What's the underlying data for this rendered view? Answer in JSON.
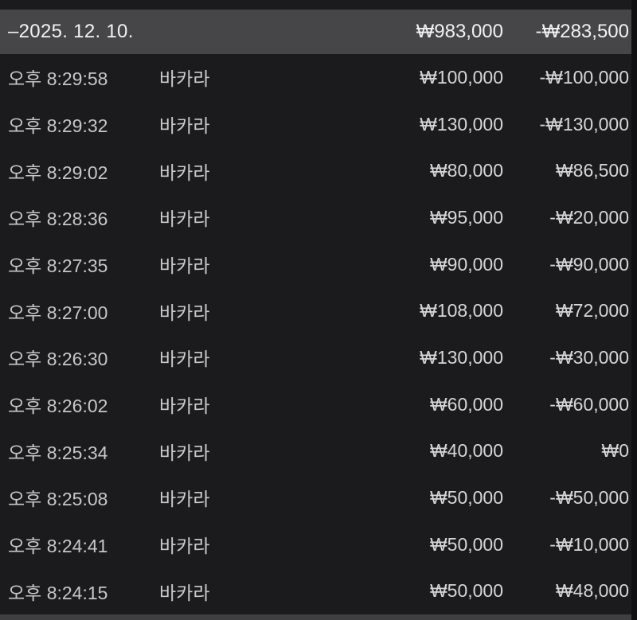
{
  "header": {
    "date_label": "–2025. 12. 10.",
    "total_bet": "₩983,000",
    "total_profit": "-₩283,500"
  },
  "rows": [
    {
      "time": "오후 8:29:58",
      "game": "바카라",
      "bet": "₩100,000",
      "profit": "-₩100,000"
    },
    {
      "time": "오후 8:29:32",
      "game": "바카라",
      "bet": "₩130,000",
      "profit": "-₩130,000"
    },
    {
      "time": "오후 8:29:02",
      "game": "바카라",
      "bet": "₩80,000",
      "profit": "₩86,500"
    },
    {
      "time": "오후 8:28:36",
      "game": "바카라",
      "bet": "₩95,000",
      "profit": "-₩20,000"
    },
    {
      "time": "오후 8:27:35",
      "game": "바카라",
      "bet": "₩90,000",
      "profit": "-₩90,000"
    },
    {
      "time": "오후 8:27:00",
      "game": "바카라",
      "bet": "₩108,000",
      "profit": "₩72,000"
    },
    {
      "time": "오후 8:26:30",
      "game": "바카라",
      "bet": "₩130,000",
      "profit": "-₩30,000"
    },
    {
      "time": "오후 8:26:02",
      "game": "바카라",
      "bet": "₩60,000",
      "profit": "-₩60,000"
    },
    {
      "time": "오후 8:25:34",
      "game": "바카라",
      "bet": "₩40,000",
      "profit": "₩0"
    },
    {
      "time": "오후 8:25:08",
      "game": "바카라",
      "bet": "₩50,000",
      "profit": "-₩50,000"
    },
    {
      "time": "오후 8:24:41",
      "game": "바카라",
      "bet": "₩50,000",
      "profit": "-₩10,000"
    },
    {
      "time": "오후 8:24:15",
      "game": "바카라",
      "bet": "₩50,000",
      "profit": "₩48,000"
    }
  ],
  "colors": {
    "page_background": "#1b1b1d",
    "section_header_background": "#464648",
    "header_text": "#f2f2f2",
    "row_text": "#cbcbcd",
    "amount_text": "#d6d6d8"
  }
}
